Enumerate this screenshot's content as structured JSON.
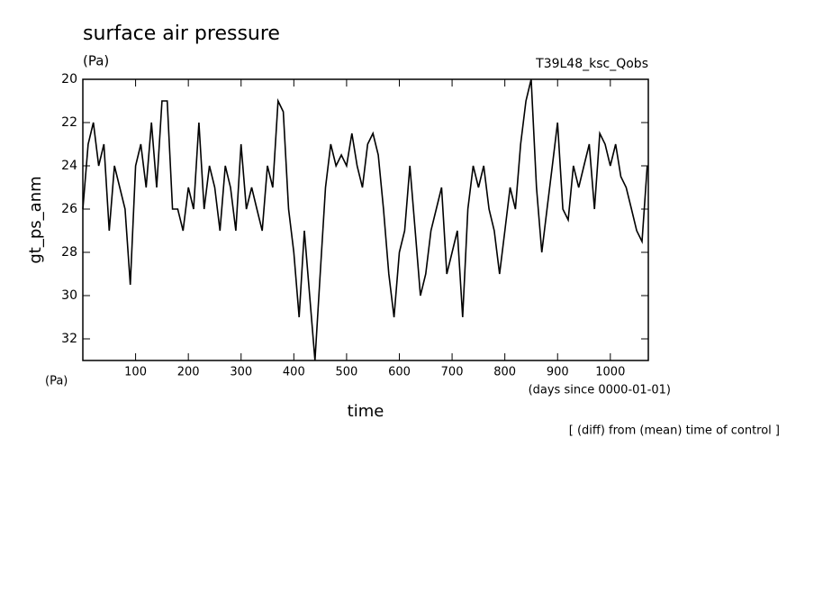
{
  "chart_data": {
    "type": "line",
    "title": "surface air pressure",
    "units": "(Pa)",
    "run_name": "T39L48_ksc_Qobs",
    "ylabel": "gt_ps_anm",
    "y_units": "(Pa)",
    "xlabel": "time",
    "x_units": "(days since 0000-01-01)",
    "note": "[ (diff) from (mean) time of control ]",
    "color": "#000000",
    "x": [
      0,
      10,
      20,
      30,
      40,
      50,
      60,
      70,
      80,
      90,
      100,
      110,
      120,
      130,
      140,
      150,
      160,
      170,
      180,
      190,
      200,
      210,
      220,
      230,
      240,
      250,
      260,
      270,
      280,
      290,
      300,
      310,
      320,
      330,
      340,
      350,
      360,
      370,
      380,
      390,
      400,
      410,
      420,
      430,
      440,
      450,
      460,
      470,
      480,
      490,
      500,
      510,
      520,
      530,
      540,
      550,
      560,
      570,
      580,
      590,
      600,
      610,
      620,
      630,
      640,
      650,
      660,
      670,
      680,
      690,
      700,
      710,
      720,
      730,
      740,
      750,
      760,
      770,
      780,
      790,
      800,
      810,
      820,
      830,
      840,
      850,
      860,
      870,
      880,
      890,
      900,
      910,
      920,
      930,
      940,
      950,
      960,
      970,
      980,
      990,
      1000,
      1010,
      1020,
      1030,
      1040,
      1050,
      1060,
      1070
    ],
    "values": [
      26,
      23,
      22,
      24,
      23,
      27,
      24,
      25,
      26,
      29.5,
      24,
      23,
      25,
      22,
      25,
      21,
      21,
      26,
      26,
      27,
      25,
      26,
      22,
      26,
      24,
      25,
      27,
      24,
      25,
      27,
      23,
      26,
      25,
      26,
      27,
      24,
      25,
      21,
      21.5,
      26,
      28,
      31,
      27,
      30,
      33,
      29,
      25,
      23,
      24,
      23.5,
      24,
      22.5,
      24,
      25,
      23,
      22.5,
      23.5,
      26,
      29,
      31,
      28,
      27,
      24,
      27,
      30,
      29,
      27,
      26,
      25,
      29,
      28,
      27,
      31,
      26,
      24,
      25,
      24,
      26,
      27,
      29,
      27,
      25,
      26,
      23,
      21,
      20,
      25,
      28,
      26,
      24,
      22,
      26,
      26.5,
      24,
      25,
      24,
      23,
      26,
      22.5,
      23,
      24,
      23,
      24.5,
      25,
      26,
      27,
      27.5,
      24
    ],
    "xlim": [
      0,
      1072
    ],
    "xticks": [
      100,
      200,
      300,
      400,
      500,
      600,
      700,
      800,
      900,
      1000
    ],
    "ylim": [
      33,
      20
    ],
    "yticks": [
      20,
      22,
      24,
      26,
      28,
      30,
      32
    ]
  }
}
